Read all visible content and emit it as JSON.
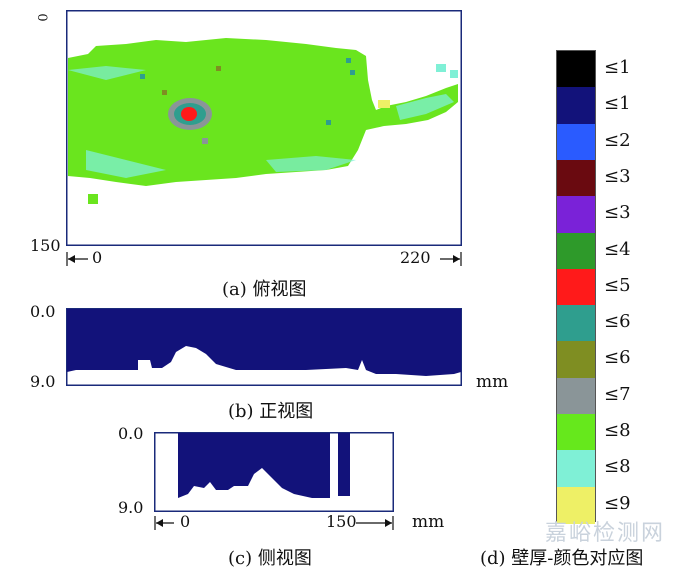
{
  "top_view": {
    "y_start": "0",
    "y_end": "150",
    "x_start": "0",
    "x_end": "220",
    "caption": "(a) 俯视图"
  },
  "front_view": {
    "y_top": "0.0",
    "y_bottom": "9.0",
    "unit": "mm",
    "caption": "(b) 正视图"
  },
  "side_view": {
    "y_top": "0.0",
    "y_bottom": "9.0",
    "x_start": "0",
    "x_end": "150",
    "unit": "mm",
    "caption": "(c) 侧视图"
  },
  "legend": {
    "caption": "(d) 壁厚-颜色对应图",
    "items": [
      {
        "label": "≤1",
        "color": "#000000"
      },
      {
        "label": "≤1",
        "color": "#12127a"
      },
      {
        "label": "≤2",
        "color": "#2a5bff"
      },
      {
        "label": "≤3",
        "color": "#6a0a10"
      },
      {
        "label": "≤3",
        "color": "#7a22d8"
      },
      {
        "label": "≤4",
        "color": "#2e9a2a"
      },
      {
        "label": "≤5",
        "color": "#ff1a1a"
      },
      {
        "label": "≤6",
        "color": "#2f9e8e"
      },
      {
        "label": "≤6",
        "color": "#7f8e22"
      },
      {
        "label": "≤7",
        "color": "#8a9598"
      },
      {
        "label": "≤8",
        "color": "#66e81c"
      },
      {
        "label": "≤8",
        "color": "#7ff0d6"
      },
      {
        "label": "≤9",
        "color": "#eef066"
      }
    ]
  },
  "watermark": "嘉峪检测网"
}
